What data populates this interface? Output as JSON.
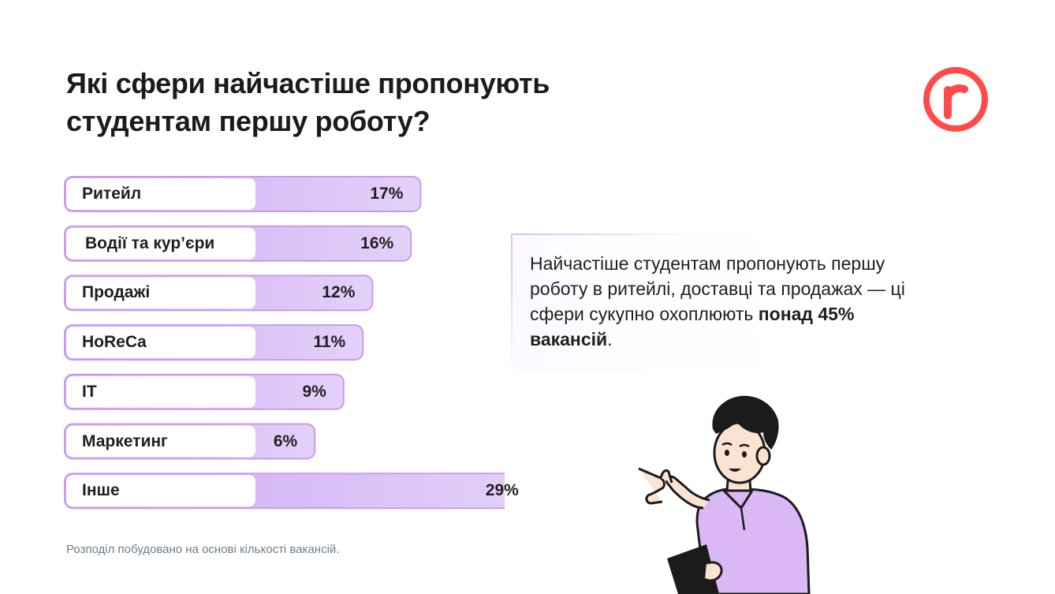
{
  "title": {
    "line1": "Які сфери найчастіше пропонують",
    "line2": "студентам першу роботу?"
  },
  "logo": {
    "icon": "r-logo-icon",
    "color": "#ff4a4a"
  },
  "chart_data": {
    "type": "bar",
    "orientation": "horizontal",
    "categories": [
      "Ритейл",
      "Водії та кур’єри",
      "Продажі",
      "HoReCa",
      "IT",
      "Маркетинг",
      "Інше"
    ],
    "values": [
      17,
      16,
      12,
      11,
      9,
      6,
      29
    ],
    "value_labels": [
      "17%",
      "16%",
      "12%",
      "11%",
      "9%",
      "6%",
      "29%"
    ],
    "unit": "%",
    "title": "Які сфери найчастіше пропонують студентам першу роботу?",
    "xlabel": "",
    "ylabel": "",
    "grid": false,
    "legend": "none",
    "colors": {
      "bar": "#dcc4f7",
      "bar_end": "#cda9f2",
      "border": "#c89bee",
      "label_box": "#ffffff"
    }
  },
  "callout": {
    "text_plain": "Найчастіше студентам пропонують першу роботу в ритейлі, доставці та продажах — ці сфери сукупно охоплюють ",
    "text_bold": "понад 45% вакансій",
    "text_end": "."
  },
  "footnote": "Розподіл побудовано на основі кількості вакансій.",
  "illustration": {
    "icon": "student-pointing-illustration",
    "shirt_color": "#d9b8f5"
  }
}
